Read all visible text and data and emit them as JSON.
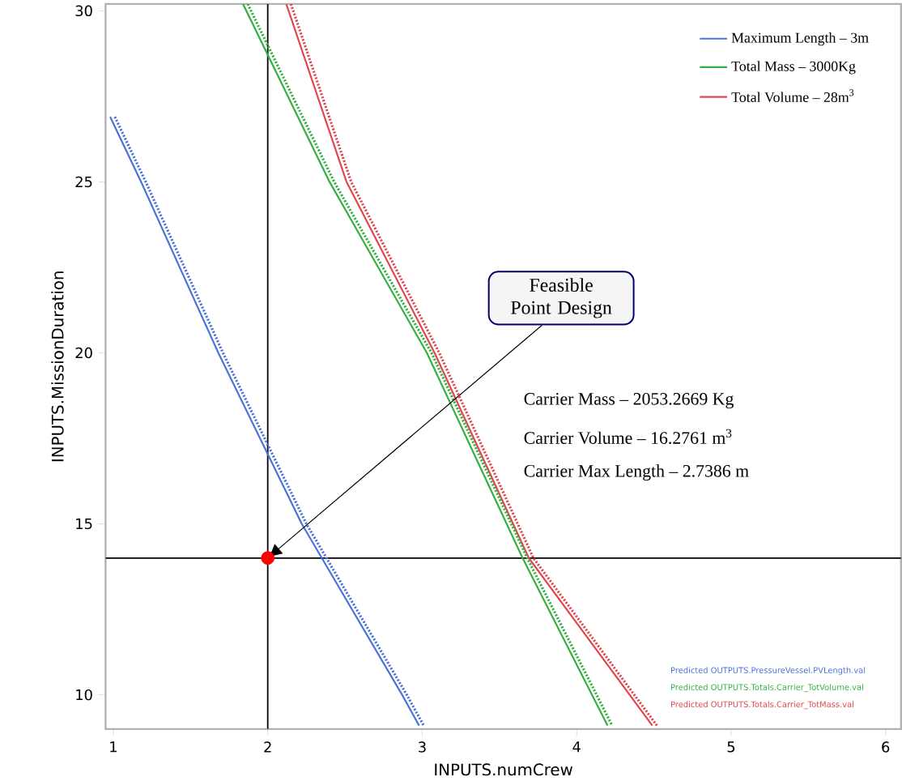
{
  "chart_data": {
    "type": "line",
    "xlabel": "INPUTS.numCrew",
    "ylabel": "INPUTS.MissionDuration",
    "xlim": [
      0.95,
      6.1
    ],
    "ylim": [
      9,
      30.2
    ],
    "xticks": [
      1,
      2,
      3,
      4,
      5,
      6
    ],
    "yticks": [
      10,
      15,
      20,
      25,
      30
    ],
    "grid": false,
    "legend": "top right",
    "marker": "none",
    "series": [
      {
        "name": "Maximum Length – 3m",
        "color": "#4a72d9",
        "line_style": "solid",
        "x": [
          0.98,
          1.18,
          1.68,
          2.22,
          2.87,
          2.98
        ],
        "values": [
          26.9,
          25,
          20,
          15,
          10,
          9.1
        ]
      },
      {
        "name": "Total Mass – 3000Kg",
        "color": "#33b040",
        "line_style": "solid",
        "x": [
          1.84,
          2.4,
          3.03,
          3.65,
          4.2
        ],
        "values": [
          30.2,
          25,
          20,
          14,
          9.1
        ]
      },
      {
        "name": "Total Volume – 28m$^{3}$",
        "color": "#e0474c",
        "line_style": "solid",
        "x": [
          2.12,
          2.51,
          3.08,
          3.69,
          4.49
        ],
        "values": [
          30.2,
          25,
          20,
          14,
          9.1
        ]
      },
      {
        "color": "#4a72d9",
        "line_style": "dotted",
        "x": [
          1.01,
          1.21,
          1.71,
          2.25,
          2.9,
          3.01
        ],
        "values": [
          26.9,
          25,
          20,
          15,
          10,
          9.1
        ]
      },
      {
        "color": "#33b040",
        "line_style": "dotted",
        "x": [
          1.87,
          2.43,
          3.06,
          3.68,
          4.23
        ],
        "values": [
          30.2,
          25,
          20,
          14,
          9.1
        ]
      },
      {
        "color": "#e0474c",
        "line_style": "dotted",
        "x": [
          2.15,
          2.54,
          3.11,
          3.72,
          4.52
        ],
        "values": [
          30.2,
          25,
          20,
          14,
          9.1
        ]
      },
      {
        "type": "scatter",
        "color": "#ff0000",
        "marker": "circle",
        "x": [
          2
        ],
        "values": [
          14
        ]
      }
    ],
    "ref_lines": [
      {
        "axis": "x",
        "value": 2,
        "color": "#000000"
      },
      {
        "axis": "y",
        "value": 14,
        "color": "#000000"
      }
    ],
    "annotations": [
      {
        "text": "Feasible Point Design",
        "x": 2,
        "y": 14
      },
      "Carrier Mass – 2053.2669 Kg",
      "Carrier Volume – 16.2761 m$^{3}$",
      "Carrier Max Length –  2.7386 m",
      "Predicted OUTPUTS.PressureVessel.PVLength.val",
      "Predicted OUTPUTS.Totals.Carrier_TotVolume.val",
      "Predicted OUTPUTS.Totals.Carrier_TotMass.val"
    ]
  }
}
